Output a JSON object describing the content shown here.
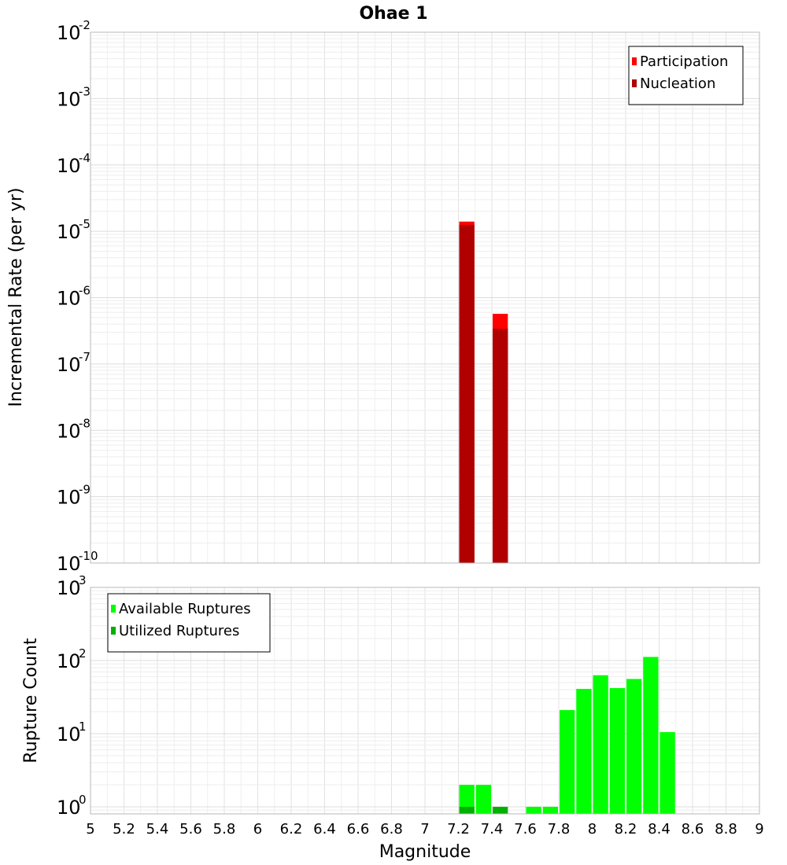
{
  "chart_data": [
    {
      "type": "bar",
      "title": "Ohae 1",
      "xlabel": "Magnitude",
      "ylabel": "Incremental Rate (per yr)",
      "yscale": "log",
      "ylim": [
        1e-10,
        0.01
      ],
      "xlim": [
        5,
        9
      ],
      "grid": true,
      "legend_position": "top-right",
      "y_ticks": [
        {
          "base": "10",
          "exp": "-10",
          "value": 1e-10
        },
        {
          "base": "10",
          "exp": "-9",
          "value": 1e-09
        },
        {
          "base": "10",
          "exp": "-8",
          "value": 1e-08
        },
        {
          "base": "10",
          "exp": "-7",
          "value": 1e-07
        },
        {
          "base": "10",
          "exp": "-6",
          "value": 1e-06
        },
        {
          "base": "10",
          "exp": "-5",
          "value": 1e-05
        },
        {
          "base": "10",
          "exp": "-4",
          "value": 0.0001
        },
        {
          "base": "10",
          "exp": "-3",
          "value": 0.001
        },
        {
          "base": "10",
          "exp": "-2",
          "value": 0.01
        }
      ],
      "series": [
        {
          "name": "Participation",
          "color": "#ff0000",
          "x": [
            7.25,
            7.45
          ],
          "values": [
            1.4e-05,
            5.7e-07
          ]
        },
        {
          "name": "Nucleation",
          "color": "#b00000",
          "x": [
            7.25,
            7.45
          ],
          "values": [
            1.25e-05,
            3.4e-07
          ]
        }
      ]
    },
    {
      "type": "bar",
      "xlabel": "Magnitude",
      "ylabel": "Rupture Count",
      "yscale": "log",
      "ylim": [
        0.8,
        1000
      ],
      "xlim": [
        5,
        9
      ],
      "grid": true,
      "legend_position": "top-left",
      "x_ticks": [
        "5",
        "5.2",
        "5.4",
        "5.6",
        "5.8",
        "6",
        "6.2",
        "6.4",
        "6.6",
        "6.8",
        "7",
        "7.2",
        "7.4",
        "7.6",
        "7.8",
        "8",
        "8.2",
        "8.4",
        "8.6",
        "8.8",
        "9"
      ],
      "y_ticks": [
        {
          "base": "10",
          "exp": "0",
          "value": 1
        },
        {
          "base": "10",
          "exp": "1",
          "value": 10
        },
        {
          "base": "10",
          "exp": "2",
          "value": 100
        },
        {
          "base": "10",
          "exp": "3",
          "value": 1000
        }
      ],
      "series": [
        {
          "name": "Available Ruptures",
          "color": "#00ff00",
          "x": [
            7.25,
            7.35,
            7.65,
            7.75,
            7.85,
            7.95,
            8.05,
            8.15,
            8.25,
            8.35,
            8.45
          ],
          "values": [
            2,
            2,
            1,
            1,
            21,
            41,
            63,
            42,
            56,
            112,
            10.5
          ]
        },
        {
          "name": "Utilized Ruptures",
          "color": "#00b000",
          "x": [
            7.25,
            7.45
          ],
          "values": [
            1,
            1
          ]
        }
      ]
    }
  ]
}
